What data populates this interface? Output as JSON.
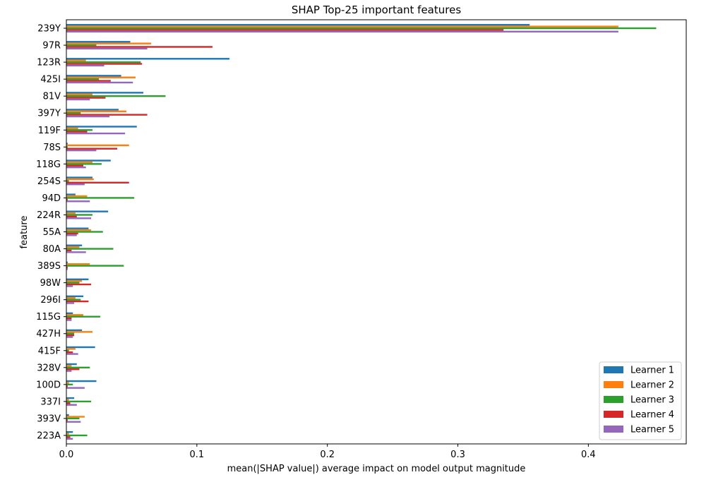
{
  "chart_data": {
    "type": "bar",
    "orientation": "horizontal",
    "title": "SHAP Top-25 important features",
    "xlabel": "mean(|SHAP value|) average impact on model output magnitude",
    "ylabel": "feature",
    "xlim": [
      0,
      0.475
    ],
    "xticks": [
      0.0,
      0.1,
      0.2,
      0.3,
      0.4
    ],
    "xtick_labels": [
      "0.0",
      "0.1",
      "0.2",
      "0.3",
      "0.4"
    ],
    "grid": false,
    "legend_position": "lower-right",
    "categories": [
      "239Y",
      "97R",
      "123R",
      "425I",
      "81V",
      "397Y",
      "119F",
      "78S",
      "118G",
      "254S",
      "94D",
      "224R",
      "55A",
      "80A",
      "389S",
      "98W",
      "296I",
      "115G",
      "427H",
      "415F",
      "328V",
      "100D",
      "337I",
      "393V",
      "223A"
    ],
    "series": [
      {
        "name": "Learner 1",
        "color": "#1f77b4",
        "values": [
          0.355,
          0.049,
          0.125,
          0.042,
          0.059,
          0.04,
          0.054,
          0.001,
          0.034,
          0.02,
          0.007,
          0.032,
          0.017,
          0.012,
          0.001,
          0.017,
          0.013,
          0.005,
          0.012,
          0.022,
          0.008,
          0.023,
          0.006,
          0.002,
          0.005
        ]
      },
      {
        "name": "Learner 2",
        "color": "#ff7f0e",
        "values": [
          0.423,
          0.065,
          0.015,
          0.053,
          0.02,
          0.046,
          0.009,
          0.048,
          0.02,
          0.021,
          0.016,
          0.007,
          0.019,
          0.01,
          0.018,
          0.012,
          0.007,
          0.013,
          0.02,
          0.007,
          0.004,
          0.002,
          0.002,
          0.014,
          0.002
        ]
      },
      {
        "name": "Learner 3",
        "color": "#2ca02c",
        "values": [
          0.452,
          0.023,
          0.057,
          0.025,
          0.076,
          0.011,
          0.02,
          0.001,
          0.027,
          0.002,
          0.052,
          0.02,
          0.028,
          0.036,
          0.044,
          0.01,
          0.011,
          0.026,
          0.006,
          0.002,
          0.018,
          0.005,
          0.019,
          0.01,
          0.016
        ]
      },
      {
        "name": "Learner 4",
        "color": "#d62728",
        "values": [
          0.335,
          0.112,
          0.058,
          0.034,
          0.03,
          0.062,
          0.016,
          0.039,
          0.013,
          0.048,
          0.001,
          0.008,
          0.009,
          0.004,
          0.001,
          0.019,
          0.017,
          0.004,
          0.006,
          0.005,
          0.01,
          0.001,
          0.003,
          0.001,
          0.003
        ]
      },
      {
        "name": "Learner 5",
        "color": "#9467bd",
        "values": [
          0.423,
          0.062,
          0.029,
          0.051,
          0.018,
          0.033,
          0.045,
          0.023,
          0.015,
          0.014,
          0.018,
          0.019,
          0.008,
          0.015,
          0.001,
          0.005,
          0.006,
          0.004,
          0.005,
          0.009,
          0.004,
          0.014,
          0.008,
          0.011,
          0.005
        ]
      }
    ]
  }
}
